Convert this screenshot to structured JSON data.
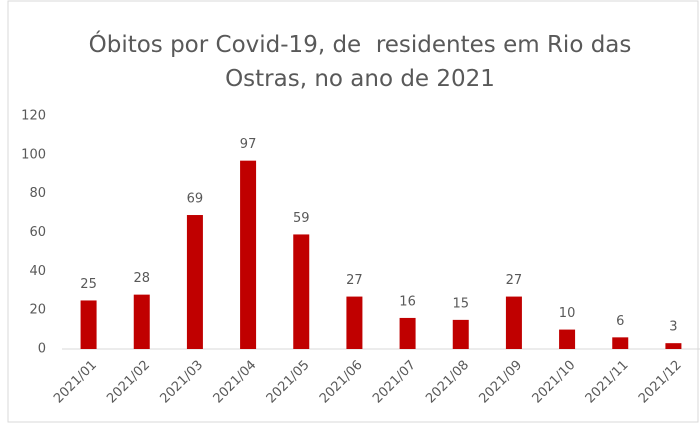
{
  "chart_data": {
    "type": "bar",
    "title": "Óbitos por Covid-19, de  residentes em Rio das Ostras, no ano de 2021",
    "categories": [
      "2021/01",
      "2021/02",
      "2021/03",
      "2021/04",
      "2021/05",
      "2021/06",
      "2021/07",
      "2021/08",
      "2021/09",
      "2021/10",
      "2021/11",
      "2021/12"
    ],
    "values": [
      25,
      28,
      69,
      97,
      59,
      27,
      16,
      15,
      27,
      10,
      6,
      3
    ],
    "color": "#c00000",
    "ylim": [
      0,
      120
    ],
    "yticks": [
      0,
      20,
      40,
      60,
      80,
      100,
      120
    ],
    "grid": false
  }
}
